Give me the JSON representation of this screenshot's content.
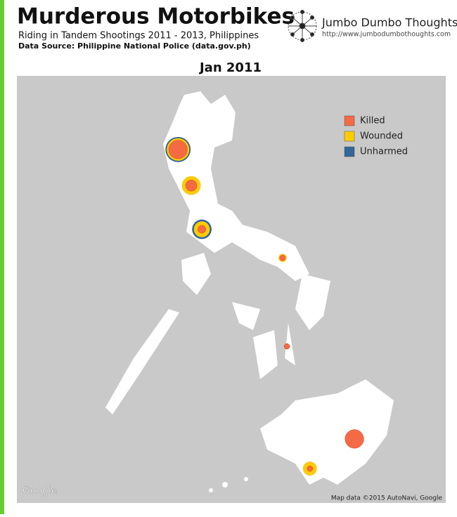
{
  "header": {
    "title": "Murderous Motorbikes",
    "subtitle": "Riding in Tandem Shootings 2011 - 2013, Philippines",
    "source": "Data Source: Philippine National Police (data.gov.ph)"
  },
  "logo": {
    "name": "Jumbo Dumbo Thoughts",
    "url": "http://www.jumbodumbothoughts.com"
  },
  "map": {
    "title": "Jan 2011",
    "legend": [
      {
        "name": "Killed",
        "color": "#f46a45"
      },
      {
        "name": "Wounded",
        "color": "#ffcc00"
      },
      {
        "name": "Unharmed",
        "color": "#336699"
      }
    ],
    "markers": [
      {
        "lat": 18.32,
        "lon": 120.13,
        "killed": 11,
        "wounded": 5,
        "unharmed": 4
      },
      {
        "lat": 16.91,
        "lon": 120.47,
        "killed": 4,
        "wounded": 7,
        "unharmed": 0
      },
      {
        "lat": 15.2,
        "lon": 120.74,
        "killed": 2,
        "wounded": 6,
        "unharmed": 4
      },
      {
        "lat": 14.08,
        "lon": 122.81,
        "killed": 1,
        "wounded": 1,
        "unharmed": 0
      },
      {
        "lat": 10.62,
        "lon": 122.92,
        "killed": 1,
        "wounded": 0,
        "unharmed": 0
      },
      {
        "lat": 7.0,
        "lon": 124.65,
        "killed": 11,
        "wounded": 0,
        "unharmed": 0
      },
      {
        "lat": 5.84,
        "lon": 123.51,
        "killed": 1,
        "wounded": 5,
        "unharmed": 0
      }
    ],
    "attribution_logo": "Google",
    "attribution": "Map data ©2015 AutoNavi, Google"
  }
}
